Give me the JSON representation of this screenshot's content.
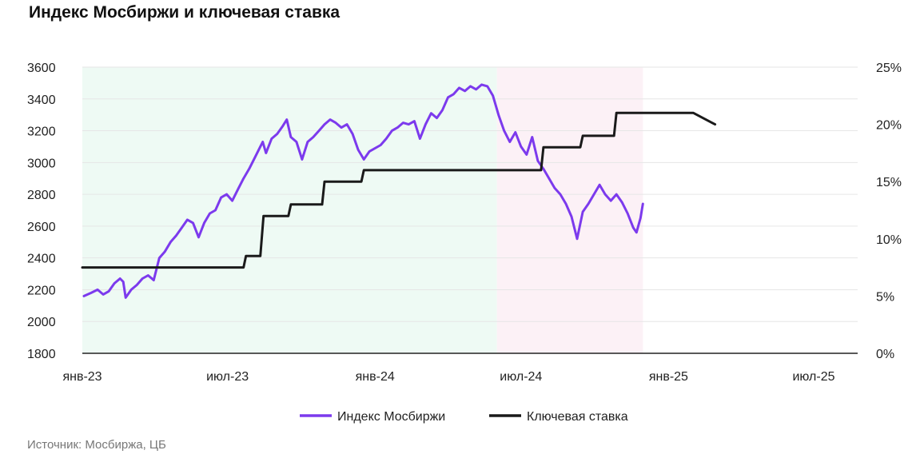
{
  "title": "Индекс Мосбиржи и ключевая ставка",
  "source": "Источник: Мосбиржа, ЦБ",
  "chart_data": {
    "type": "line",
    "title": "Индекс Мосбиржи и ключевая ставка",
    "x_axis": {
      "type": "date",
      "range": [
        "2023-01-01",
        "2025-07-31"
      ],
      "ticks": [
        {
          "date": "2023-01-01",
          "label": "янв-23"
        },
        {
          "date": "2023-07-01",
          "label": "июл-23"
        },
        {
          "date": "2024-01-01",
          "label": "янв-24"
        },
        {
          "date": "2024-07-01",
          "label": "июл-24"
        },
        {
          "date": "2025-01-01",
          "label": "янв-25"
        },
        {
          "date": "2025-07-01",
          "label": "июл-25"
        }
      ]
    },
    "y_left": {
      "range": [
        1800,
        3600
      ],
      "ticks": [
        {
          "v": 1800,
          "label": "1800"
        },
        {
          "v": 2000,
          "label": "2000"
        },
        {
          "v": 2200,
          "label": "2200"
        },
        {
          "v": 2400,
          "label": "2400"
        },
        {
          "v": 2600,
          "label": "2600"
        },
        {
          "v": 2800,
          "label": "2800"
        },
        {
          "v": 3000,
          "label": "3000"
        },
        {
          "v": 3200,
          "label": "3200"
        },
        {
          "v": 3400,
          "label": "3400"
        },
        {
          "v": 3600,
          "label": "3600"
        }
      ]
    },
    "y_right": {
      "range": [
        0,
        25
      ],
      "ticks": [
        {
          "v": 0,
          "label": "0%"
        },
        {
          "v": 5,
          "label": "5%"
        },
        {
          "v": 10,
          "label": "10%"
        },
        {
          "v": 15,
          "label": "15%"
        },
        {
          "v": 20,
          "label": "20%"
        },
        {
          "v": 25,
          "label": "25%"
        }
      ]
    },
    "grid": true,
    "legend_position": "bottom",
    "shaded_ranges": [
      {
        "start": "2023-01-01",
        "end": "2024-06-01",
        "color": "#eefaf4"
      },
      {
        "start": "2024-06-01",
        "end": "2024-11-30",
        "color": "#fcf1f6"
      }
    ],
    "series": [
      {
        "name": "Индекс Мосбиржи",
        "axis": "left",
        "color": "#7c3aed",
        "points": [
          [
            "2023-01-03",
            2160
          ],
          [
            "2023-01-12",
            2180
          ],
          [
            "2023-01-20",
            2200
          ],
          [
            "2023-01-27",
            2170
          ],
          [
            "2023-02-03",
            2190
          ],
          [
            "2023-02-10",
            2240
          ],
          [
            "2023-02-17",
            2270
          ],
          [
            "2023-02-21",
            2250
          ],
          [
            "2023-02-24",
            2150
          ],
          [
            "2023-03-03",
            2200
          ],
          [
            "2023-03-10",
            2230
          ],
          [
            "2023-03-17",
            2270
          ],
          [
            "2023-03-24",
            2290
          ],
          [
            "2023-03-31",
            2260
          ],
          [
            "2023-04-07",
            2400
          ],
          [
            "2023-04-14",
            2440
          ],
          [
            "2023-04-21",
            2500
          ],
          [
            "2023-04-28",
            2540
          ],
          [
            "2023-05-05",
            2590
          ],
          [
            "2023-05-12",
            2640
          ],
          [
            "2023-05-19",
            2620
          ],
          [
            "2023-05-26",
            2530
          ],
          [
            "2023-06-02",
            2620
          ],
          [
            "2023-06-09",
            2680
          ],
          [
            "2023-06-16",
            2700
          ],
          [
            "2023-06-23",
            2780
          ],
          [
            "2023-06-30",
            2800
          ],
          [
            "2023-07-07",
            2760
          ],
          [
            "2023-07-14",
            2830
          ],
          [
            "2023-07-21",
            2900
          ],
          [
            "2023-07-28",
            2960
          ],
          [
            "2023-08-04",
            3030
          ],
          [
            "2023-08-11",
            3100
          ],
          [
            "2023-08-14",
            3130
          ],
          [
            "2023-08-18",
            3060
          ],
          [
            "2023-08-25",
            3150
          ],
          [
            "2023-09-01",
            3180
          ],
          [
            "2023-09-08",
            3230
          ],
          [
            "2023-09-13",
            3270
          ],
          [
            "2023-09-18",
            3160
          ],
          [
            "2023-09-25",
            3130
          ],
          [
            "2023-10-02",
            3020
          ],
          [
            "2023-10-09",
            3130
          ],
          [
            "2023-10-16",
            3160
          ],
          [
            "2023-10-23",
            3200
          ],
          [
            "2023-10-30",
            3240
          ],
          [
            "2023-11-06",
            3270
          ],
          [
            "2023-11-13",
            3250
          ],
          [
            "2023-11-20",
            3220
          ],
          [
            "2023-11-27",
            3240
          ],
          [
            "2023-12-04",
            3180
          ],
          [
            "2023-12-11",
            3080
          ],
          [
            "2023-12-18",
            3020
          ],
          [
            "2023-12-25",
            3070
          ],
          [
            "2024-01-08",
            3110
          ],
          [
            "2024-01-15",
            3150
          ],
          [
            "2024-01-22",
            3200
          ],
          [
            "2024-01-29",
            3220
          ],
          [
            "2024-02-05",
            3250
          ],
          [
            "2024-02-12",
            3240
          ],
          [
            "2024-02-19",
            3260
          ],
          [
            "2024-02-26",
            3150
          ],
          [
            "2024-03-04",
            3240
          ],
          [
            "2024-03-11",
            3310
          ],
          [
            "2024-03-18",
            3280
          ],
          [
            "2024-03-25",
            3330
          ],
          [
            "2024-04-01",
            3410
          ],
          [
            "2024-04-08",
            3430
          ],
          [
            "2024-04-15",
            3470
          ],
          [
            "2024-04-22",
            3450
          ],
          [
            "2024-04-29",
            3480
          ],
          [
            "2024-05-06",
            3460
          ],
          [
            "2024-05-13",
            3490
          ],
          [
            "2024-05-20",
            3480
          ],
          [
            "2024-05-27",
            3420
          ],
          [
            "2024-06-03",
            3300
          ],
          [
            "2024-06-10",
            3200
          ],
          [
            "2024-06-17",
            3130
          ],
          [
            "2024-06-24",
            3190
          ],
          [
            "2024-07-01",
            3100
          ],
          [
            "2024-07-08",
            3050
          ],
          [
            "2024-07-15",
            3160
          ],
          [
            "2024-07-22",
            3010
          ],
          [
            "2024-07-29",
            2960
          ],
          [
            "2024-08-05",
            2900
          ],
          [
            "2024-08-12",
            2840
          ],
          [
            "2024-08-19",
            2800
          ],
          [
            "2024-08-26",
            2740
          ],
          [
            "2024-09-02",
            2660
          ],
          [
            "2024-09-09",
            2520
          ],
          [
            "2024-09-16",
            2690
          ],
          [
            "2024-09-23",
            2740
          ],
          [
            "2024-09-30",
            2800
          ],
          [
            "2024-10-07",
            2860
          ],
          [
            "2024-10-14",
            2800
          ],
          [
            "2024-10-21",
            2760
          ],
          [
            "2024-10-28",
            2800
          ],
          [
            "2024-11-04",
            2750
          ],
          [
            "2024-11-11",
            2680
          ],
          [
            "2024-11-18",
            2590
          ],
          [
            "2024-11-22",
            2560
          ],
          [
            "2024-11-27",
            2650
          ],
          [
            "2024-11-30",
            2740
          ]
        ]
      },
      {
        "name": "Ключевая ставка",
        "axis": "right",
        "color": "#1a1a1a",
        "points": [
          [
            "2023-01-01",
            7.5
          ],
          [
            "2023-07-21",
            7.5
          ],
          [
            "2023-07-24",
            8.5
          ],
          [
            "2023-08-11",
            8.5
          ],
          [
            "2023-08-15",
            12
          ],
          [
            "2023-09-15",
            12
          ],
          [
            "2023-09-18",
            13
          ],
          [
            "2023-10-27",
            13
          ],
          [
            "2023-10-30",
            15
          ],
          [
            "2023-12-15",
            15
          ],
          [
            "2023-12-18",
            16
          ],
          [
            "2024-07-26",
            16
          ],
          [
            "2024-07-29",
            18
          ],
          [
            "2024-09-13",
            18
          ],
          [
            "2024-09-16",
            19
          ],
          [
            "2024-10-25",
            19
          ],
          [
            "2024-10-28",
            21
          ],
          [
            "2025-02-01",
            21
          ],
          [
            "2025-02-28",
            20
          ]
        ]
      }
    ]
  }
}
